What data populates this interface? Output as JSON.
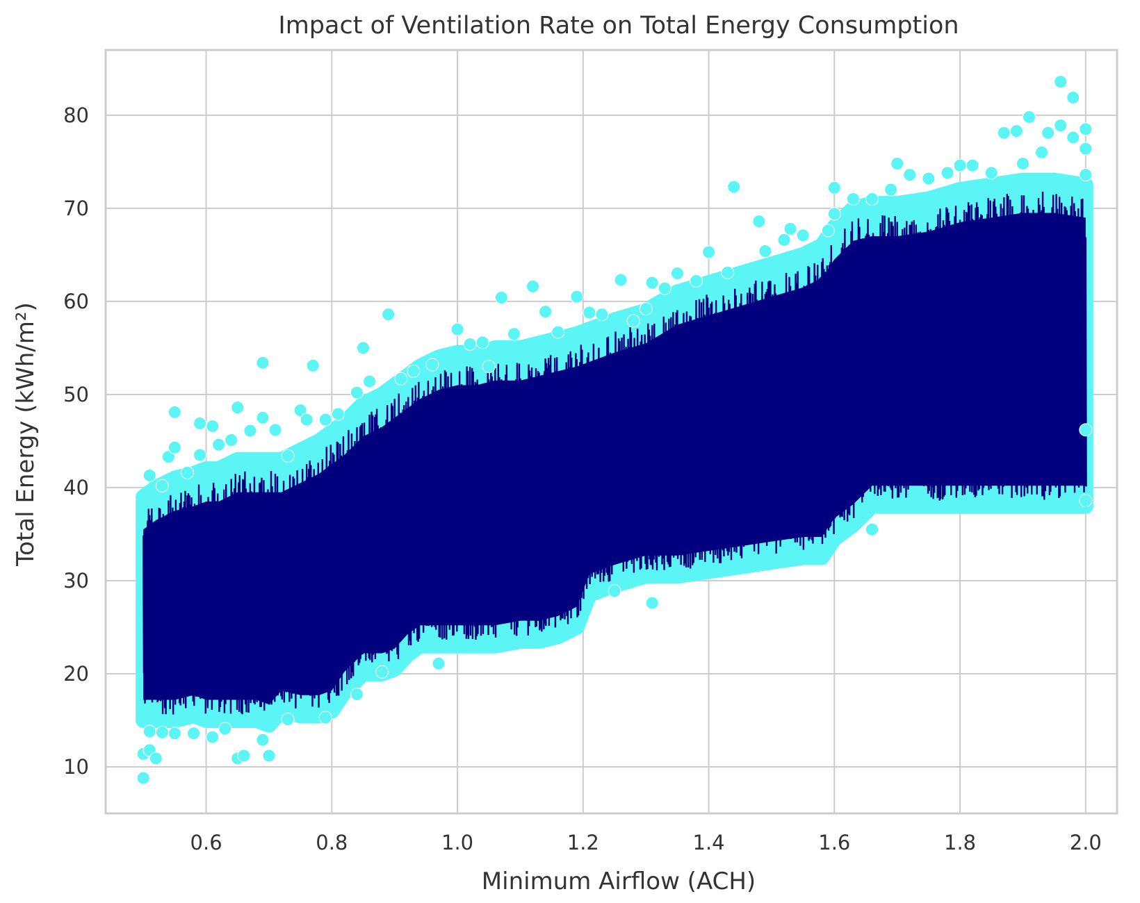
{
  "chart_data": {
    "type": "scatter",
    "title": "Impact of Ventilation Rate on Total Energy Consumption",
    "xlabel": "Minimum Airflow (ACH)",
    "ylabel": "Total Energy (kWh/m²)",
    "xlim": [
      0.44,
      2.05
    ],
    "ylim": [
      5,
      87
    ],
    "xticks": [
      "0.6",
      "0.8",
      "1.0",
      "1.2",
      "1.4",
      "1.6",
      "1.8",
      "2.0"
    ],
    "yticks": [
      "10",
      "20",
      "30",
      "40",
      "50",
      "60",
      "70",
      "80"
    ],
    "grid": true,
    "legend": "none",
    "colors": {
      "marker": "#5cf5f5",
      "marker_edge": "#ffffff",
      "line": "#00007f",
      "grid": "#cccccc",
      "frame": "#cccccc",
      "text": "#333333"
    },
    "band": {
      "x": [
        0.5,
        0.52,
        0.55,
        0.58,
        0.6,
        0.62,
        0.65,
        0.68,
        0.7,
        0.72,
        0.75,
        0.78,
        0.8,
        0.82,
        0.85,
        0.88,
        0.9,
        0.92,
        0.94,
        0.97,
        1.0,
        1.03,
        1.06,
        1.1,
        1.13,
        1.16,
        1.19,
        1.21,
        1.25,
        1.3,
        1.35,
        1.4,
        1.45,
        1.5,
        1.55,
        1.58,
        1.6,
        1.63,
        1.66,
        1.7,
        1.75,
        1.8,
        1.85,
        1.9,
        1.95,
        2.0
      ],
      "low": [
        15,
        15,
        15,
        15.5,
        15,
        15,
        15,
        15,
        14.5,
        16,
        15.5,
        15.5,
        16,
        18,
        20,
        20,
        20.5,
        22,
        23,
        23,
        23,
        23,
        23,
        23.5,
        23.5,
        24,
        25,
        28.5,
        29.5,
        30.5,
        30.5,
        31,
        31.5,
        32,
        32.5,
        32.5,
        34.5,
        36,
        38,
        38,
        38,
        38,
        38,
        38,
        38,
        38
      ],
      "high": [
        39,
        40,
        41,
        41.5,
        42,
        42,
        43,
        43,
        43,
        43,
        44,
        45,
        46,
        47,
        49,
        50,
        51,
        52,
        53,
        54,
        54.5,
        54.5,
        55,
        55,
        55.5,
        56,
        56.5,
        57,
        58,
        59,
        61,
        62,
        63,
        64,
        65,
        66,
        68,
        70,
        70.5,
        70.5,
        71,
        72,
        72.5,
        73,
        73,
        72.5
      ]
    },
    "outliers": [
      {
        "x": 0.5,
        "y": 8.8
      },
      {
        "x": 0.5,
        "y": 11.4
      },
      {
        "x": 0.51,
        "y": 13.8
      },
      {
        "x": 0.51,
        "y": 11.8
      },
      {
        "x": 0.52,
        "y": 10.9
      },
      {
        "x": 0.53,
        "y": 13.7
      },
      {
        "x": 0.55,
        "y": 13.6
      },
      {
        "x": 0.58,
        "y": 13.6
      },
      {
        "x": 0.61,
        "y": 13.2
      },
      {
        "x": 0.63,
        "y": 14.1
      },
      {
        "x": 0.65,
        "y": 10.9
      },
      {
        "x": 0.66,
        "y": 11.2
      },
      {
        "x": 0.69,
        "y": 12.9
      },
      {
        "x": 0.7,
        "y": 11.2
      },
      {
        "x": 0.73,
        "y": 15.1
      },
      {
        "x": 0.79,
        "y": 15.3
      },
      {
        "x": 0.84,
        "y": 17.8
      },
      {
        "x": 0.88,
        "y": 20.2
      },
      {
        "x": 0.97,
        "y": 21.1
      },
      {
        "x": 1.25,
        "y": 28.9
      },
      {
        "x": 1.31,
        "y": 27.6
      },
      {
        "x": 1.66,
        "y": 35.5
      },
      {
        "x": 0.51,
        "y": 41.3
      },
      {
        "x": 0.53,
        "y": 40.2
      },
      {
        "x": 0.54,
        "y": 43.3
      },
      {
        "x": 0.55,
        "y": 48.1
      },
      {
        "x": 0.55,
        "y": 44.3
      },
      {
        "x": 0.57,
        "y": 41.6
      },
      {
        "x": 0.59,
        "y": 46.9
      },
      {
        "x": 0.59,
        "y": 43.5
      },
      {
        "x": 0.61,
        "y": 46.6
      },
      {
        "x": 0.62,
        "y": 44.6
      },
      {
        "x": 0.64,
        "y": 45.1
      },
      {
        "x": 0.65,
        "y": 48.6
      },
      {
        "x": 0.67,
        "y": 46.1
      },
      {
        "x": 0.69,
        "y": 47.5
      },
      {
        "x": 0.69,
        "y": 53.4
      },
      {
        "x": 0.71,
        "y": 46.2
      },
      {
        "x": 0.73,
        "y": 43.4
      },
      {
        "x": 0.75,
        "y": 48.3
      },
      {
        "x": 0.76,
        "y": 47.3
      },
      {
        "x": 0.77,
        "y": 53.1
      },
      {
        "x": 0.79,
        "y": 47.3
      },
      {
        "x": 0.81,
        "y": 47.9
      },
      {
        "x": 0.84,
        "y": 50.2
      },
      {
        "x": 0.85,
        "y": 55.0
      },
      {
        "x": 0.86,
        "y": 51.4
      },
      {
        "x": 0.89,
        "y": 58.6
      },
      {
        "x": 0.91,
        "y": 51.7
      },
      {
        "x": 0.93,
        "y": 52.5
      },
      {
        "x": 0.96,
        "y": 53.2
      },
      {
        "x": 1.0,
        "y": 57.0
      },
      {
        "x": 1.02,
        "y": 55.4
      },
      {
        "x": 1.04,
        "y": 55.6
      },
      {
        "x": 1.05,
        "y": 53.0
      },
      {
        "x": 1.07,
        "y": 60.4
      },
      {
        "x": 1.09,
        "y": 56.5
      },
      {
        "x": 1.12,
        "y": 61.6
      },
      {
        "x": 1.14,
        "y": 58.9
      },
      {
        "x": 1.16,
        "y": 56.7
      },
      {
        "x": 1.19,
        "y": 60.5
      },
      {
        "x": 1.21,
        "y": 58.8
      },
      {
        "x": 1.23,
        "y": 58.6
      },
      {
        "x": 1.26,
        "y": 62.3
      },
      {
        "x": 1.28,
        "y": 57.9
      },
      {
        "x": 1.3,
        "y": 59.2
      },
      {
        "x": 1.31,
        "y": 62.0
      },
      {
        "x": 1.33,
        "y": 61.4
      },
      {
        "x": 1.35,
        "y": 63.0
      },
      {
        "x": 1.38,
        "y": 62.2
      },
      {
        "x": 1.4,
        "y": 65.3
      },
      {
        "x": 1.43,
        "y": 63.1
      },
      {
        "x": 1.44,
        "y": 72.3
      },
      {
        "x": 1.48,
        "y": 68.6
      },
      {
        "x": 1.49,
        "y": 65.4
      },
      {
        "x": 1.52,
        "y": 66.6
      },
      {
        "x": 1.53,
        "y": 67.8
      },
      {
        "x": 1.55,
        "y": 67.1
      },
      {
        "x": 1.59,
        "y": 67.6
      },
      {
        "x": 1.6,
        "y": 69.4
      },
      {
        "x": 1.6,
        "y": 72.2
      },
      {
        "x": 1.63,
        "y": 71.0
      },
      {
        "x": 1.66,
        "y": 71.0
      },
      {
        "x": 1.69,
        "y": 72.0
      },
      {
        "x": 1.7,
        "y": 74.8
      },
      {
        "x": 1.72,
        "y": 73.6
      },
      {
        "x": 1.75,
        "y": 73.2
      },
      {
        "x": 1.78,
        "y": 73.8
      },
      {
        "x": 1.8,
        "y": 74.6
      },
      {
        "x": 1.82,
        "y": 74.6
      },
      {
        "x": 1.85,
        "y": 73.8
      },
      {
        "x": 1.87,
        "y": 78.1
      },
      {
        "x": 1.89,
        "y": 78.3
      },
      {
        "x": 1.9,
        "y": 74.8
      },
      {
        "x": 1.91,
        "y": 79.8
      },
      {
        "x": 1.93,
        "y": 76.0
      },
      {
        "x": 1.94,
        "y": 78.1
      },
      {
        "x": 1.96,
        "y": 78.9
      },
      {
        "x": 1.96,
        "y": 83.6
      },
      {
        "x": 1.98,
        "y": 81.9
      },
      {
        "x": 1.98,
        "y": 77.6
      },
      {
        "x": 2.0,
        "y": 78.5
      },
      {
        "x": 2.0,
        "y": 76.4
      },
      {
        "x": 2.0,
        "y": 73.6
      },
      {
        "x": 2.0,
        "y": 46.2
      },
      {
        "x": 2.0,
        "y": 38.6
      }
    ]
  }
}
